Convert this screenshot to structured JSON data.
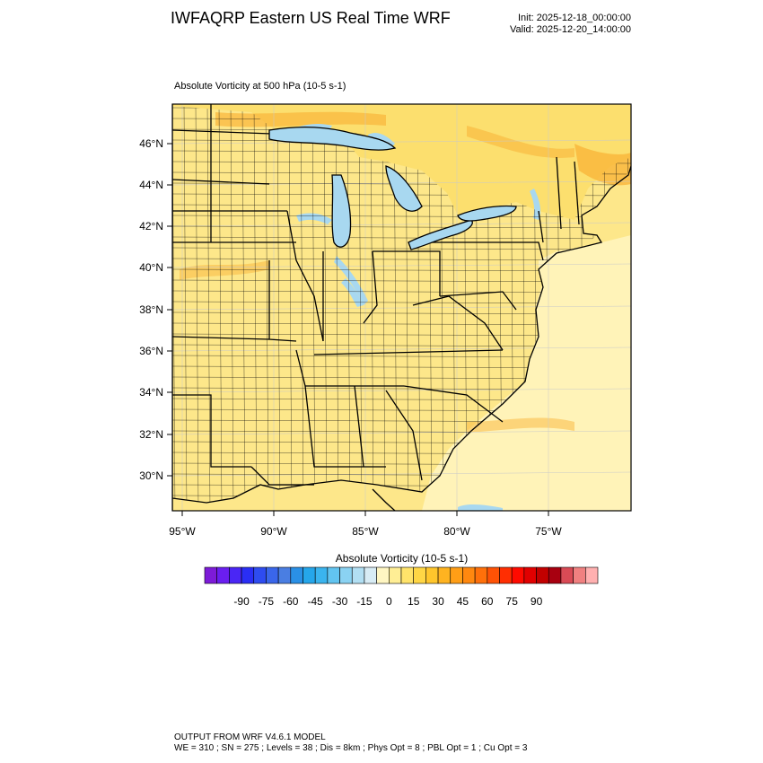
{
  "header": {
    "title": "IWFAQRP Eastern US Real Time WRF",
    "init": "Init: 2025-12-18_00:00:00",
    "valid": "Valid: 2025-12-20_14:00:00"
  },
  "field": {
    "title": "Absolute Vorticity at 500 hPa   (10-5 s-1)"
  },
  "map": {
    "lat_labels": [
      "46°N",
      "44°N",
      "42°N",
      "40°N",
      "38°N",
      "36°N",
      "34°N",
      "32°N",
      "30°N"
    ],
    "lon_labels": [
      "95°W",
      "90°W",
      "85°W",
      "80°W",
      "75°W"
    ],
    "colors": {
      "land_fill": "#fde78a",
      "ocean_fill": "#fff3b8",
      "canada_fill": "#fcdf6e",
      "positive_streak": "#f9b53a",
      "negative_streak": "#a8d8f0",
      "boundary": "#000000"
    }
  },
  "colorbar": {
    "title": "Absolute Vorticity  (10-5 s-1)",
    "tick_labels": [
      "-90",
      "-75",
      "-60",
      "-45",
      "-30",
      "-15",
      "0",
      "15",
      "30",
      "45",
      "60",
      "75",
      "90"
    ],
    "colors": [
      "#7d1bd8",
      "#6a1ef0",
      "#4a26f5",
      "#2a2ef5",
      "#2e4cf0",
      "#3a66ea",
      "#4a7ee2",
      "#2a90e6",
      "#25a6ea",
      "#3ab4ee",
      "#62c4f0",
      "#8ad2f2",
      "#b2dff3",
      "#d8ecf5",
      "#fff6c2",
      "#ffee95",
      "#ffe36a",
      "#ffd645",
      "#ffc62c",
      "#ffb320",
      "#ff9e16",
      "#ff880f",
      "#ff700a",
      "#ff5205",
      "#ff2e02",
      "#ff0a00",
      "#e10000",
      "#c20000",
      "#a80010",
      "#d94a55",
      "#f08080",
      "#ffb0b0"
    ]
  },
  "footer": {
    "line1": "OUTPUT FROM WRF V4.6.1 MODEL",
    "line2": "WE = 310 ; SN = 275 ; Levels = 38 ; Dis = 8km ; Phys Opt = 8 ; PBL Opt = 1 ; Cu Opt = 3"
  }
}
